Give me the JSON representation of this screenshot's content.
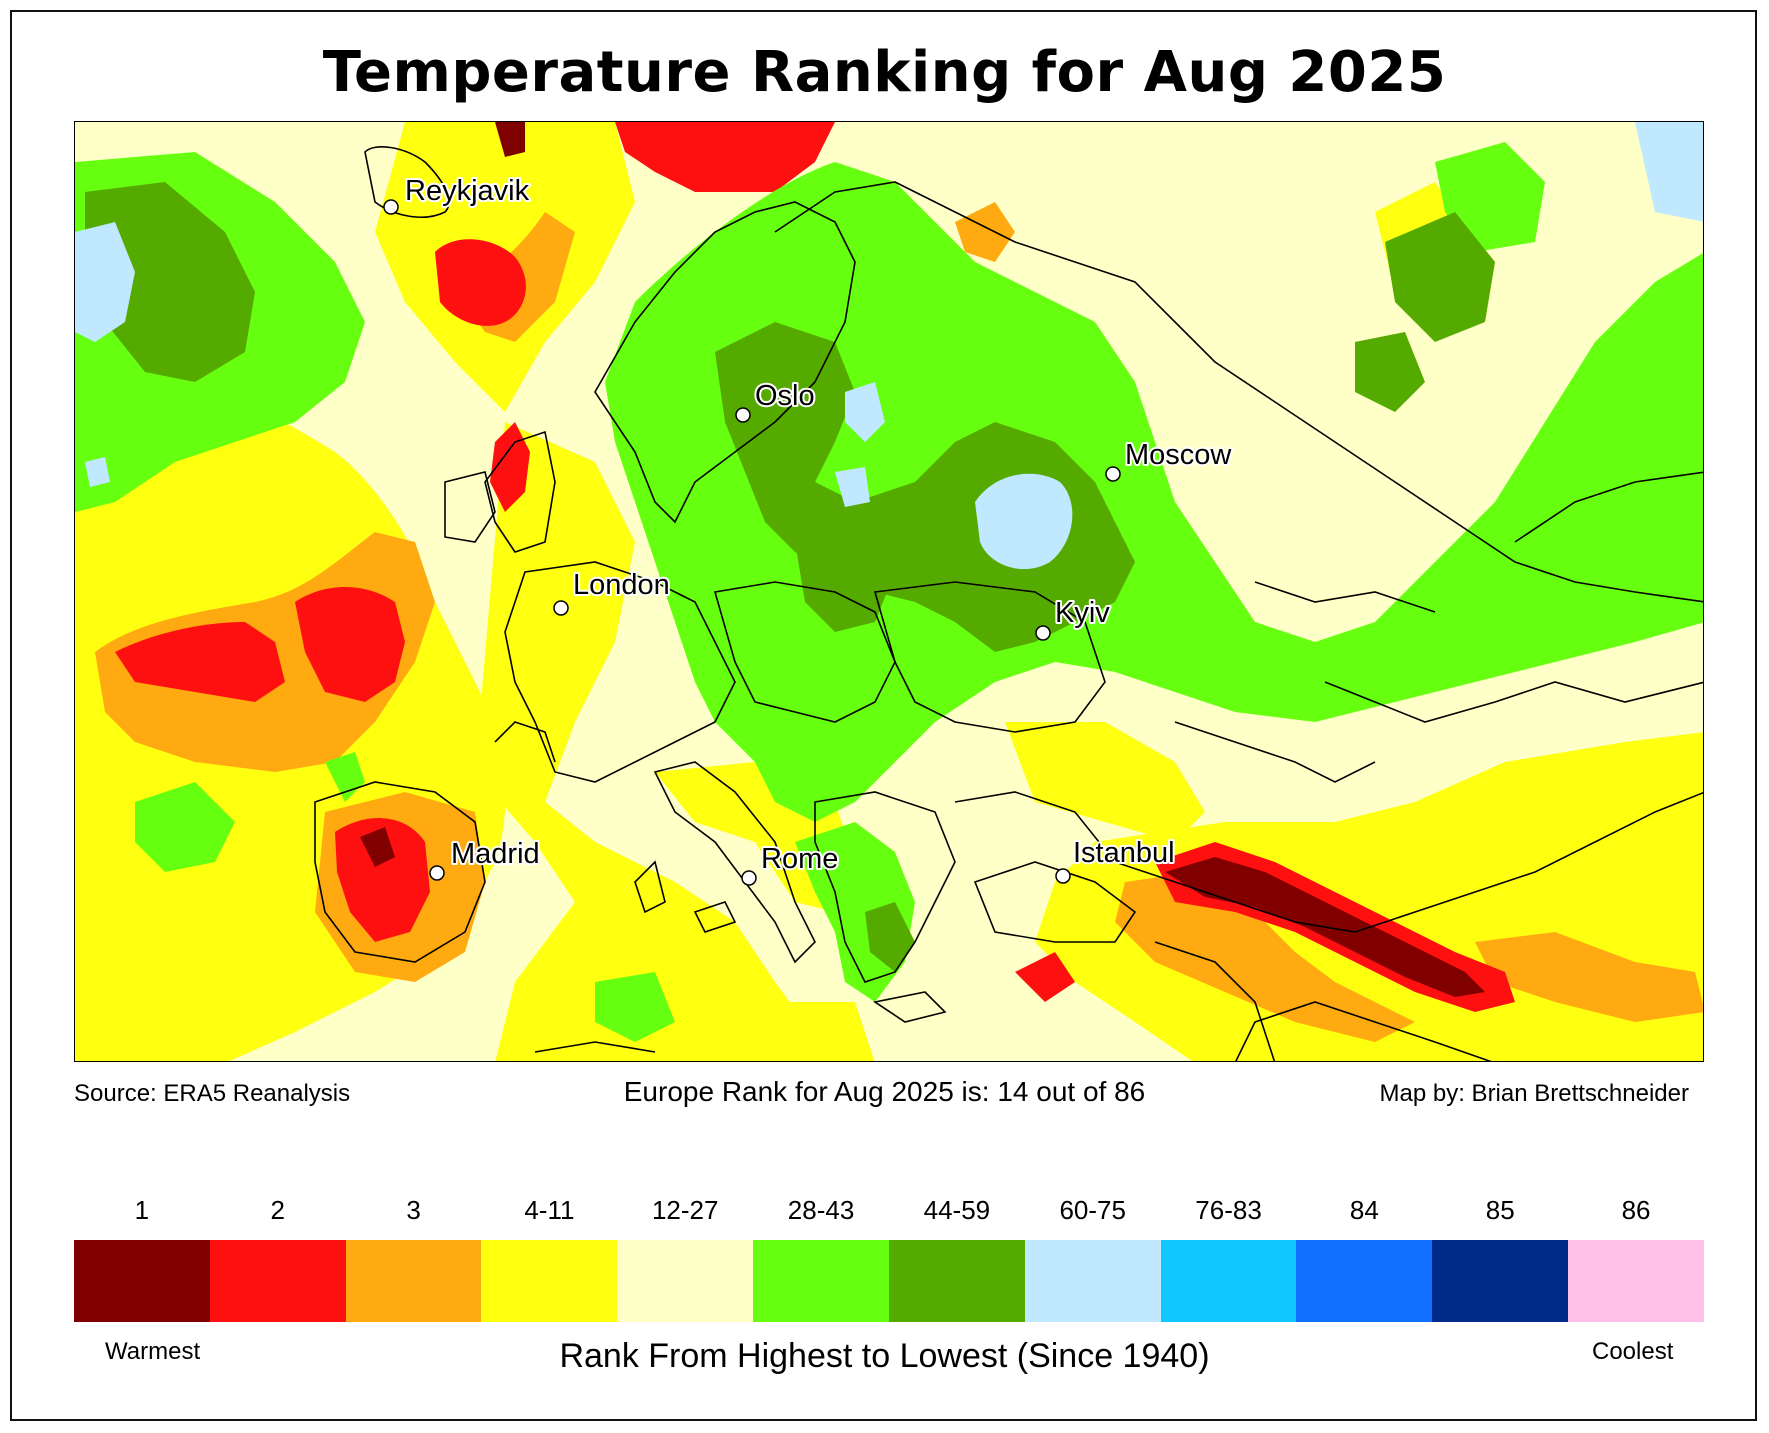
{
  "title": "Temperature Ranking for Aug 2025",
  "source": "Source: ERA5 Reanalysis",
  "summary": "Europe Rank for Aug 2025 is: 14 out of 86",
  "credit": "Map by: Brian Brettschneider",
  "cities": [
    {
      "id": "reykjavik",
      "name": "Reykjavik"
    },
    {
      "id": "oslo",
      "name": "Oslo"
    },
    {
      "id": "moscow",
      "name": "Moscow"
    },
    {
      "id": "london",
      "name": "London"
    },
    {
      "id": "kyiv",
      "name": "Kyiv"
    },
    {
      "id": "madrid",
      "name": "Madrid"
    },
    {
      "id": "rome",
      "name": "Rome"
    },
    {
      "id": "istanbul",
      "name": "Istanbul"
    }
  ],
  "legend": {
    "title": "Rank From Highest to Lowest (Since 1940)",
    "warm_label": "Warmest",
    "cool_label": "Coolest",
    "bins": [
      {
        "label": "1",
        "color": "#800000"
      },
      {
        "label": "2",
        "color": "#ff1010"
      },
      {
        "label": "3",
        "color": "#ffaa10"
      },
      {
        "label": "4-11",
        "color": "#ffff10"
      },
      {
        "label": "12-27",
        "color": "#ffffc8"
      },
      {
        "label": "28-43",
        "color": "#66ff10"
      },
      {
        "label": "44-59",
        "color": "#55aa00"
      },
      {
        "label": "60-75",
        "color": "#c0e8ff"
      },
      {
        "label": "76-83",
        "color": "#10c8ff"
      },
      {
        "label": "84",
        "color": "#1070ff"
      },
      {
        "label": "85",
        "color": "#002b88"
      },
      {
        "label": "86",
        "color": "#ffc0e8"
      }
    ]
  }
}
